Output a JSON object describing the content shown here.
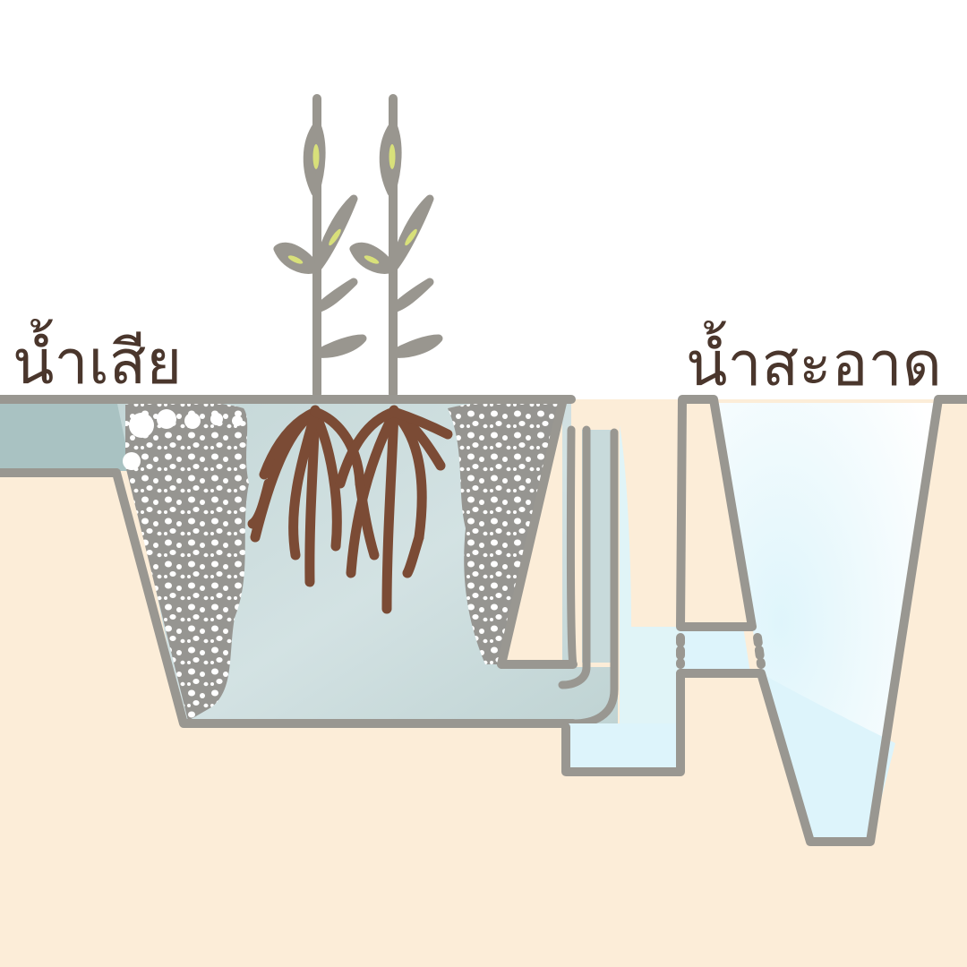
{
  "labels": {
    "waste_water": "น้ำเสีย",
    "clean_water": "น้ำสะอาด"
  },
  "colors": {
    "soil": "#fcedd8",
    "outline": "#999791",
    "waste_water": "#a9c2c2",
    "wetland_water": "#c8dadb",
    "clean_water": "#ddf4fb",
    "gravel": "#969591",
    "roots": "#7b4b35",
    "stem": "#99968f",
    "leaf_accent": "#d8e07a",
    "text": "#4a362c"
  },
  "icons": [
    "gravel-filter",
    "wetland-plant",
    "plant-roots",
    "outlet-pipe",
    "clean-water-pond"
  ]
}
